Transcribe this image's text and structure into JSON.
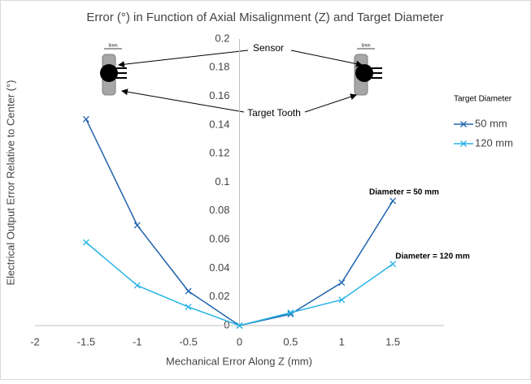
{
  "chart_data": {
    "type": "line",
    "title": "Error (°) in Function of Axial Misalignment (Z) and Target Diameter",
    "x_label": "Mechanical Error Along Z (mm)",
    "y_label": "Electrical Output Error Relative to Center (°)",
    "legend_title": "Target Diameter",
    "x": [
      -1.5,
      -1,
      -0.5,
      0,
      0.5,
      1,
      1.5
    ],
    "series": [
      {
        "name": "50 mm",
        "color": "#2063ad",
        "values": [
          0.144,
          0.07,
          0.024,
          0,
          0.008,
          0.03,
          0.087
        ]
      },
      {
        "name": "120 mm",
        "color": "#27b3e6",
        "values": [
          0.058,
          0.028,
          0.013,
          0,
          0.009,
          0.018,
          0.043
        ]
      }
    ],
    "xlim": [
      -2,
      2
    ],
    "xticks": [
      -2,
      -1.5,
      -1,
      -0.5,
      0,
      0.5,
      1,
      1.5,
      2
    ],
    "ylim": [
      0,
      0.2
    ],
    "yticks": [
      0,
      0.02,
      0.04,
      0.06,
      0.08,
      0.1,
      0.12,
      0.14,
      0.16,
      0.18,
      0.2
    ],
    "grid": true,
    "legend": "right",
    "annotations": [
      "Sensor",
      "Target Tooth",
      "Diameter = 50 mm",
      "Diameter = 120 mm",
      "5mm",
      "5mm"
    ]
  }
}
